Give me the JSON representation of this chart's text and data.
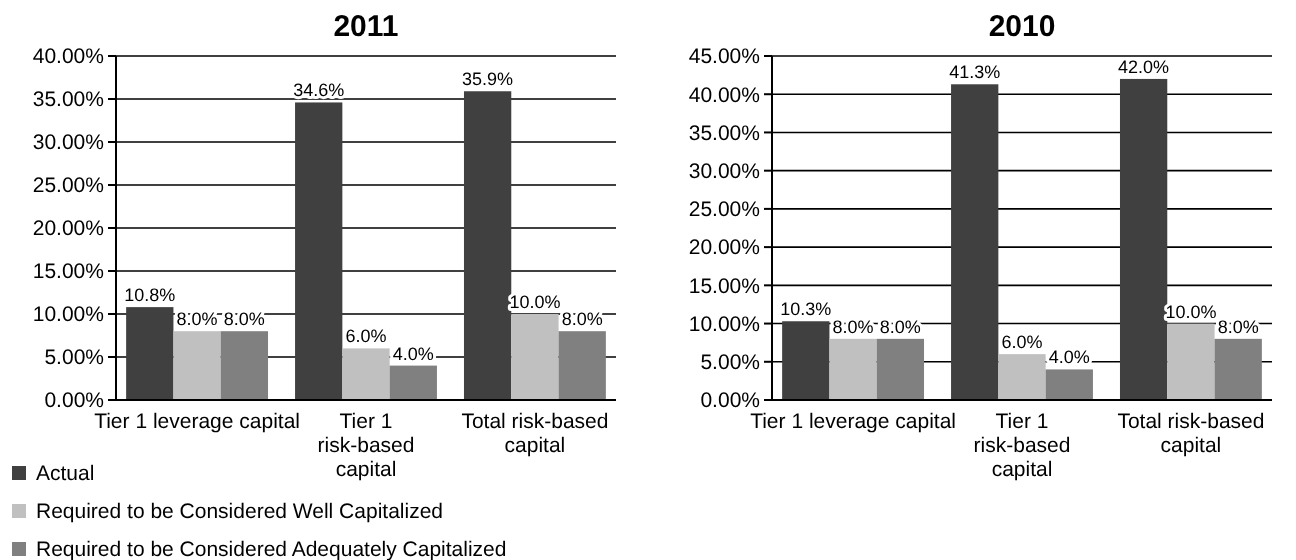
{
  "chart_data": [
    {
      "type": "bar",
      "title": "2011",
      "categories": [
        "Tier 1 leverage capital",
        "Tier 1 risk-based capital",
        "Total risk-based capital"
      ],
      "series": [
        {
          "name": "Actual",
          "color": "#404040",
          "values": [
            10.8,
            34.6,
            35.9
          ],
          "value_labels": [
            "10.8%",
            "34.6%",
            "35.9%"
          ]
        },
        {
          "name": "Required to be Considered Well Capitalized",
          "color": "#c0c0c0",
          "values": [
            8.0,
            6.0,
            10.0
          ],
          "value_labels": [
            "8.0%",
            "6.0%",
            "10.0%"
          ]
        },
        {
          "name": "Required to be Considered Adequately Capitalized",
          "color": "#808080",
          "values": [
            8.0,
            4.0,
            8.0
          ],
          "value_labels": [
            "8.0%",
            "4.0%",
            "8.0%"
          ]
        }
      ],
      "ylim": [
        0,
        40
      ],
      "yticks": [
        {
          "value": 0,
          "label": "0.00%"
        },
        {
          "value": 5,
          "label": "5.00%"
        },
        {
          "value": 10,
          "label": "10.00%"
        },
        {
          "value": 15,
          "label": "15.00%"
        },
        {
          "value": 20,
          "label": "20.00%"
        },
        {
          "value": 25,
          "label": "25.00%"
        },
        {
          "value": 30,
          "label": "30.00%"
        },
        {
          "value": 35,
          "label": "35.00%"
        },
        {
          "value": 40,
          "label": "40.00%"
        }
      ],
      "grid": "y",
      "legend": "bottom"
    },
    {
      "type": "bar",
      "title": "2010",
      "categories": [
        "Tier 1 leverage capital",
        "Tier 1 risk-based capital",
        "Total risk-based capital"
      ],
      "series": [
        {
          "color": "#404040",
          "values": [
            10.3,
            41.3,
            42.0
          ],
          "value_labels": [
            "10.3%",
            "41.3%",
            "42.0%"
          ]
        },
        {
          "color": "#c0c0c0",
          "values": [
            8.0,
            6.0,
            10.0
          ],
          "value_labels": [
            "8.0%",
            "6.0%",
            "10.0%"
          ]
        },
        {
          "color": "#808080",
          "values": [
            8.0,
            4.0,
            8.0
          ],
          "value_labels": [
            "8.0%",
            "4.0%",
            "8.0%"
          ]
        }
      ],
      "ylim": [
        0,
        45
      ],
      "yticks": [
        {
          "value": 0,
          "label": "0.00%"
        },
        {
          "value": 5,
          "label": "5.00%"
        },
        {
          "value": 10,
          "label": "10.00%"
        },
        {
          "value": 15,
          "label": "15.00%"
        },
        {
          "value": 20,
          "label": "20.00%"
        },
        {
          "value": 25,
          "label": "25.00%"
        },
        {
          "value": 30,
          "label": "30.00%"
        },
        {
          "value": 35,
          "label": "35.00%"
        },
        {
          "value": 40,
          "label": "40.00%"
        },
        {
          "value": 45,
          "label": "45.00%"
        }
      ],
      "grid": "y"
    }
  ]
}
